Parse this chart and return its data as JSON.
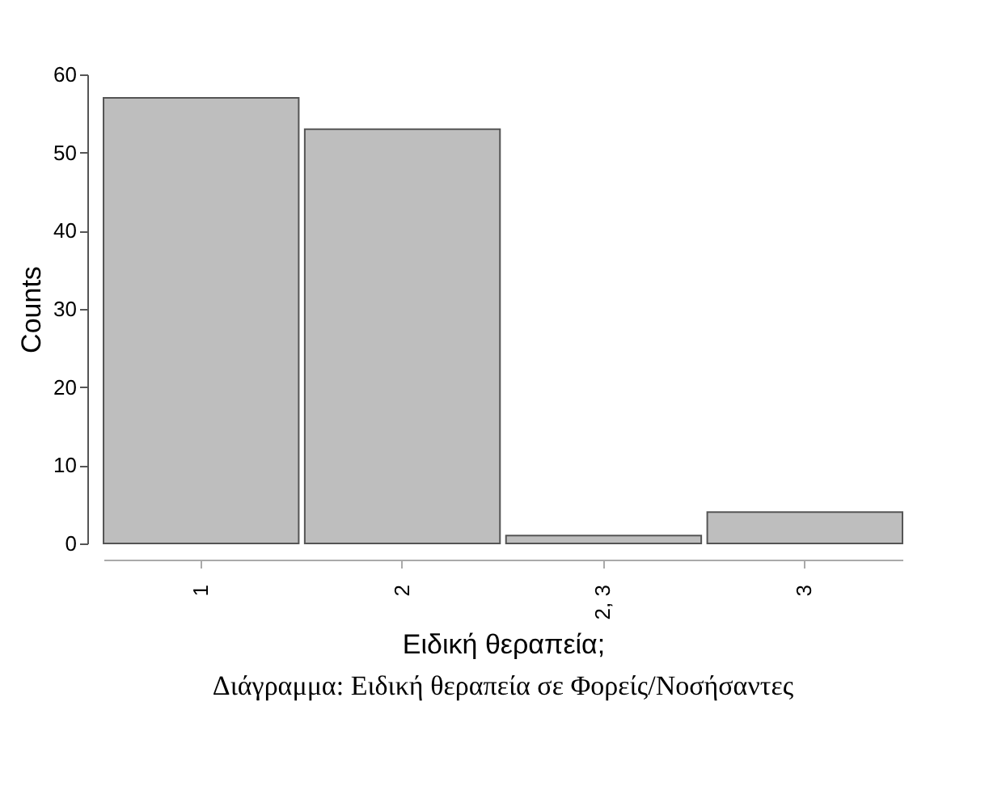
{
  "chart_data": {
    "type": "bar",
    "xlabel": "Ειδική θεραπεία;",
    "ylabel": "Counts",
    "categories": [
      "1",
      "2",
      "2, 3",
      "3"
    ],
    "values": [
      57,
      53,
      1,
      4
    ],
    "color": "#bebebe",
    "ylim": [
      0,
      60
    ],
    "yticks": [
      0,
      10,
      20,
      30,
      40,
      50,
      60
    ],
    "grid": false,
    "annotations": [
      "Διάγραμμα: Ειδική θεραπεία σε Φορείς/Νοσήσαντες"
    ]
  }
}
